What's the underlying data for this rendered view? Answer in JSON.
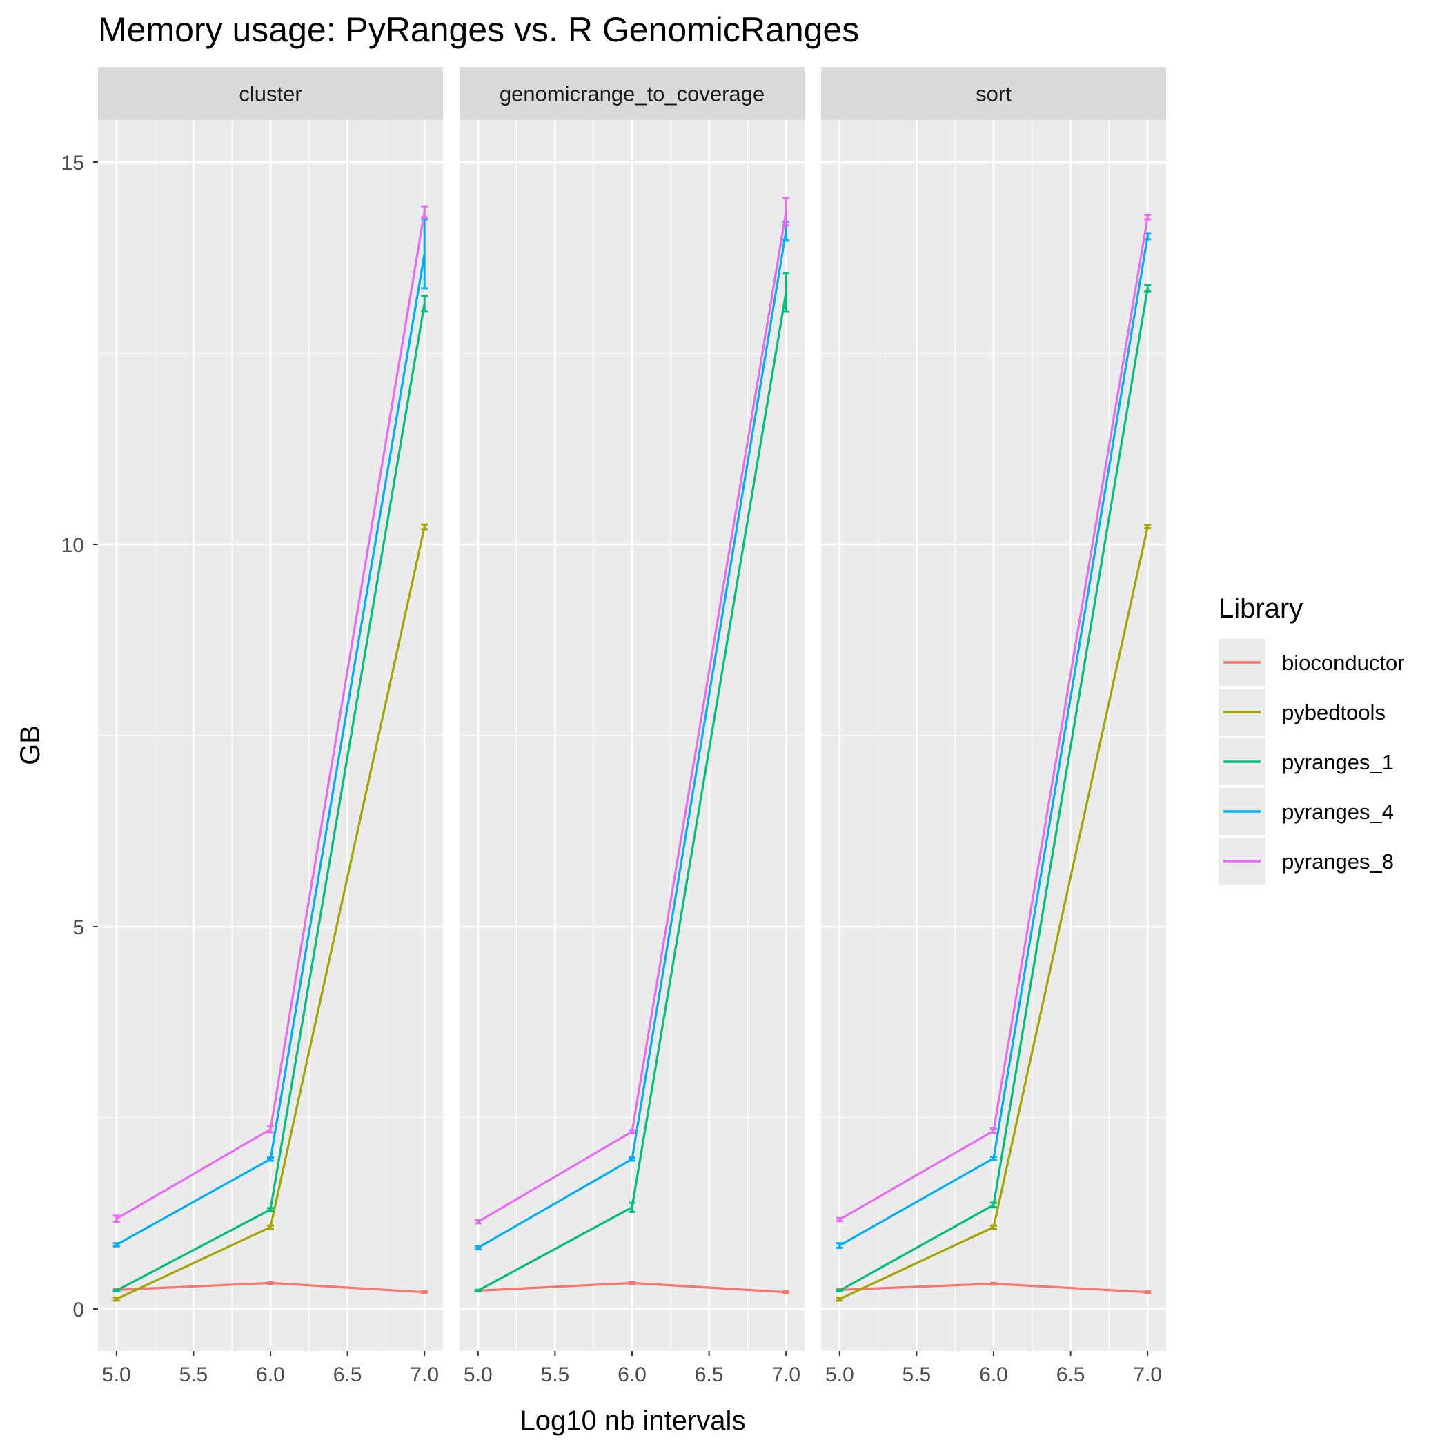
{
  "chart_data": {
    "type": "line",
    "title": "Memory usage: PyRanges vs. R GenomicRanges",
    "xlabel": "Log10 nb intervals",
    "ylabel": "GB",
    "x": [
      5.0,
      6.0,
      7.0
    ],
    "x_ticks": [
      "5.0",
      "5.5",
      "6.0",
      "6.5",
      "7.0"
    ],
    "x_tick_values": [
      5.0,
      5.5,
      6.0,
      6.5,
      7.0
    ],
    "xlim": [
      4.88,
      7.12
    ],
    "y_ticks": [
      "0",
      "5",
      "10",
      "15"
    ],
    "y_tick_values": [
      0,
      5,
      10,
      15
    ],
    "ylim": [
      -0.55,
      15.55
    ],
    "grid": true,
    "legend": {
      "title": "Library",
      "position": "right",
      "entries": [
        "bioconductor",
        "pybedtools",
        "pyranges_1",
        "pyranges_4",
        "pyranges_8"
      ]
    },
    "panels": [
      {
        "label": "cluster",
        "series": [
          {
            "name": "bioconductor",
            "color": "#F8766D",
            "values": [
              0.25,
              0.34,
              0.22
            ],
            "err": [
              0.01,
              0.01,
              0.01
            ]
          },
          {
            "name": "pybedtools",
            "color": "#A3A500",
            "values": [
              0.13,
              1.07,
              10.23
            ],
            "err": [
              0.02,
              0.02,
              0.03
            ]
          },
          {
            "name": "pyranges_1",
            "color": "#00BF7D",
            "values": [
              0.24,
              1.3,
              13.15
            ],
            "err": [
              0.01,
              0.02,
              0.1
            ]
          },
          {
            "name": "pyranges_4",
            "color": "#00B0F6",
            "values": [
              0.84,
              1.96,
              13.8
            ],
            "err": [
              0.02,
              0.02,
              0.45
            ]
          },
          {
            "name": "pyranges_8",
            "color": "#E76BF3",
            "values": [
              1.18,
              2.35,
              14.35
            ],
            "err": [
              0.04,
              0.04,
              0.07
            ]
          }
        ]
      },
      {
        "label": "genomicrange_to_coverage",
        "series": [
          {
            "name": "bioconductor",
            "color": "#F8766D",
            "values": [
              0.24,
              0.34,
              0.22
            ],
            "err": [
              0.01,
              0.01,
              0.01
            ]
          },
          {
            "name": "pyranges_1",
            "color": "#00BF7D",
            "values": [
              0.24,
              1.33,
              13.3
            ],
            "err": [
              0.01,
              0.06,
              0.25
            ]
          },
          {
            "name": "pyranges_4",
            "color": "#00B0F6",
            "values": [
              0.8,
              1.96,
              14.1
            ],
            "err": [
              0.02,
              0.02,
              0.12
            ]
          },
          {
            "name": "pyranges_8",
            "color": "#E76BF3",
            "values": [
              1.14,
              2.32,
              14.35
            ],
            "err": [
              0.02,
              0.02,
              0.18
            ]
          }
        ]
      },
      {
        "label": "sort",
        "series": [
          {
            "name": "bioconductor",
            "color": "#F8766D",
            "values": [
              0.25,
              0.33,
              0.22
            ],
            "err": [
              0.01,
              0.01,
              0.01
            ]
          },
          {
            "name": "pybedtools",
            "color": "#A3A500",
            "values": [
              0.13,
              1.07,
              10.23
            ],
            "err": [
              0.02,
              0.02,
              0.02
            ]
          },
          {
            "name": "pyranges_1",
            "color": "#00BF7D",
            "values": [
              0.24,
              1.36,
              13.35
            ],
            "err": [
              0.01,
              0.03,
              0.04
            ]
          },
          {
            "name": "pyranges_4",
            "color": "#00B0F6",
            "values": [
              0.83,
              1.97,
              14.03
            ],
            "err": [
              0.03,
              0.02,
              0.04
            ]
          },
          {
            "name": "pyranges_8",
            "color": "#E76BF3",
            "values": [
              1.17,
              2.33,
              14.28
            ],
            "err": [
              0.02,
              0.03,
              0.03
            ]
          }
        ]
      }
    ]
  }
}
